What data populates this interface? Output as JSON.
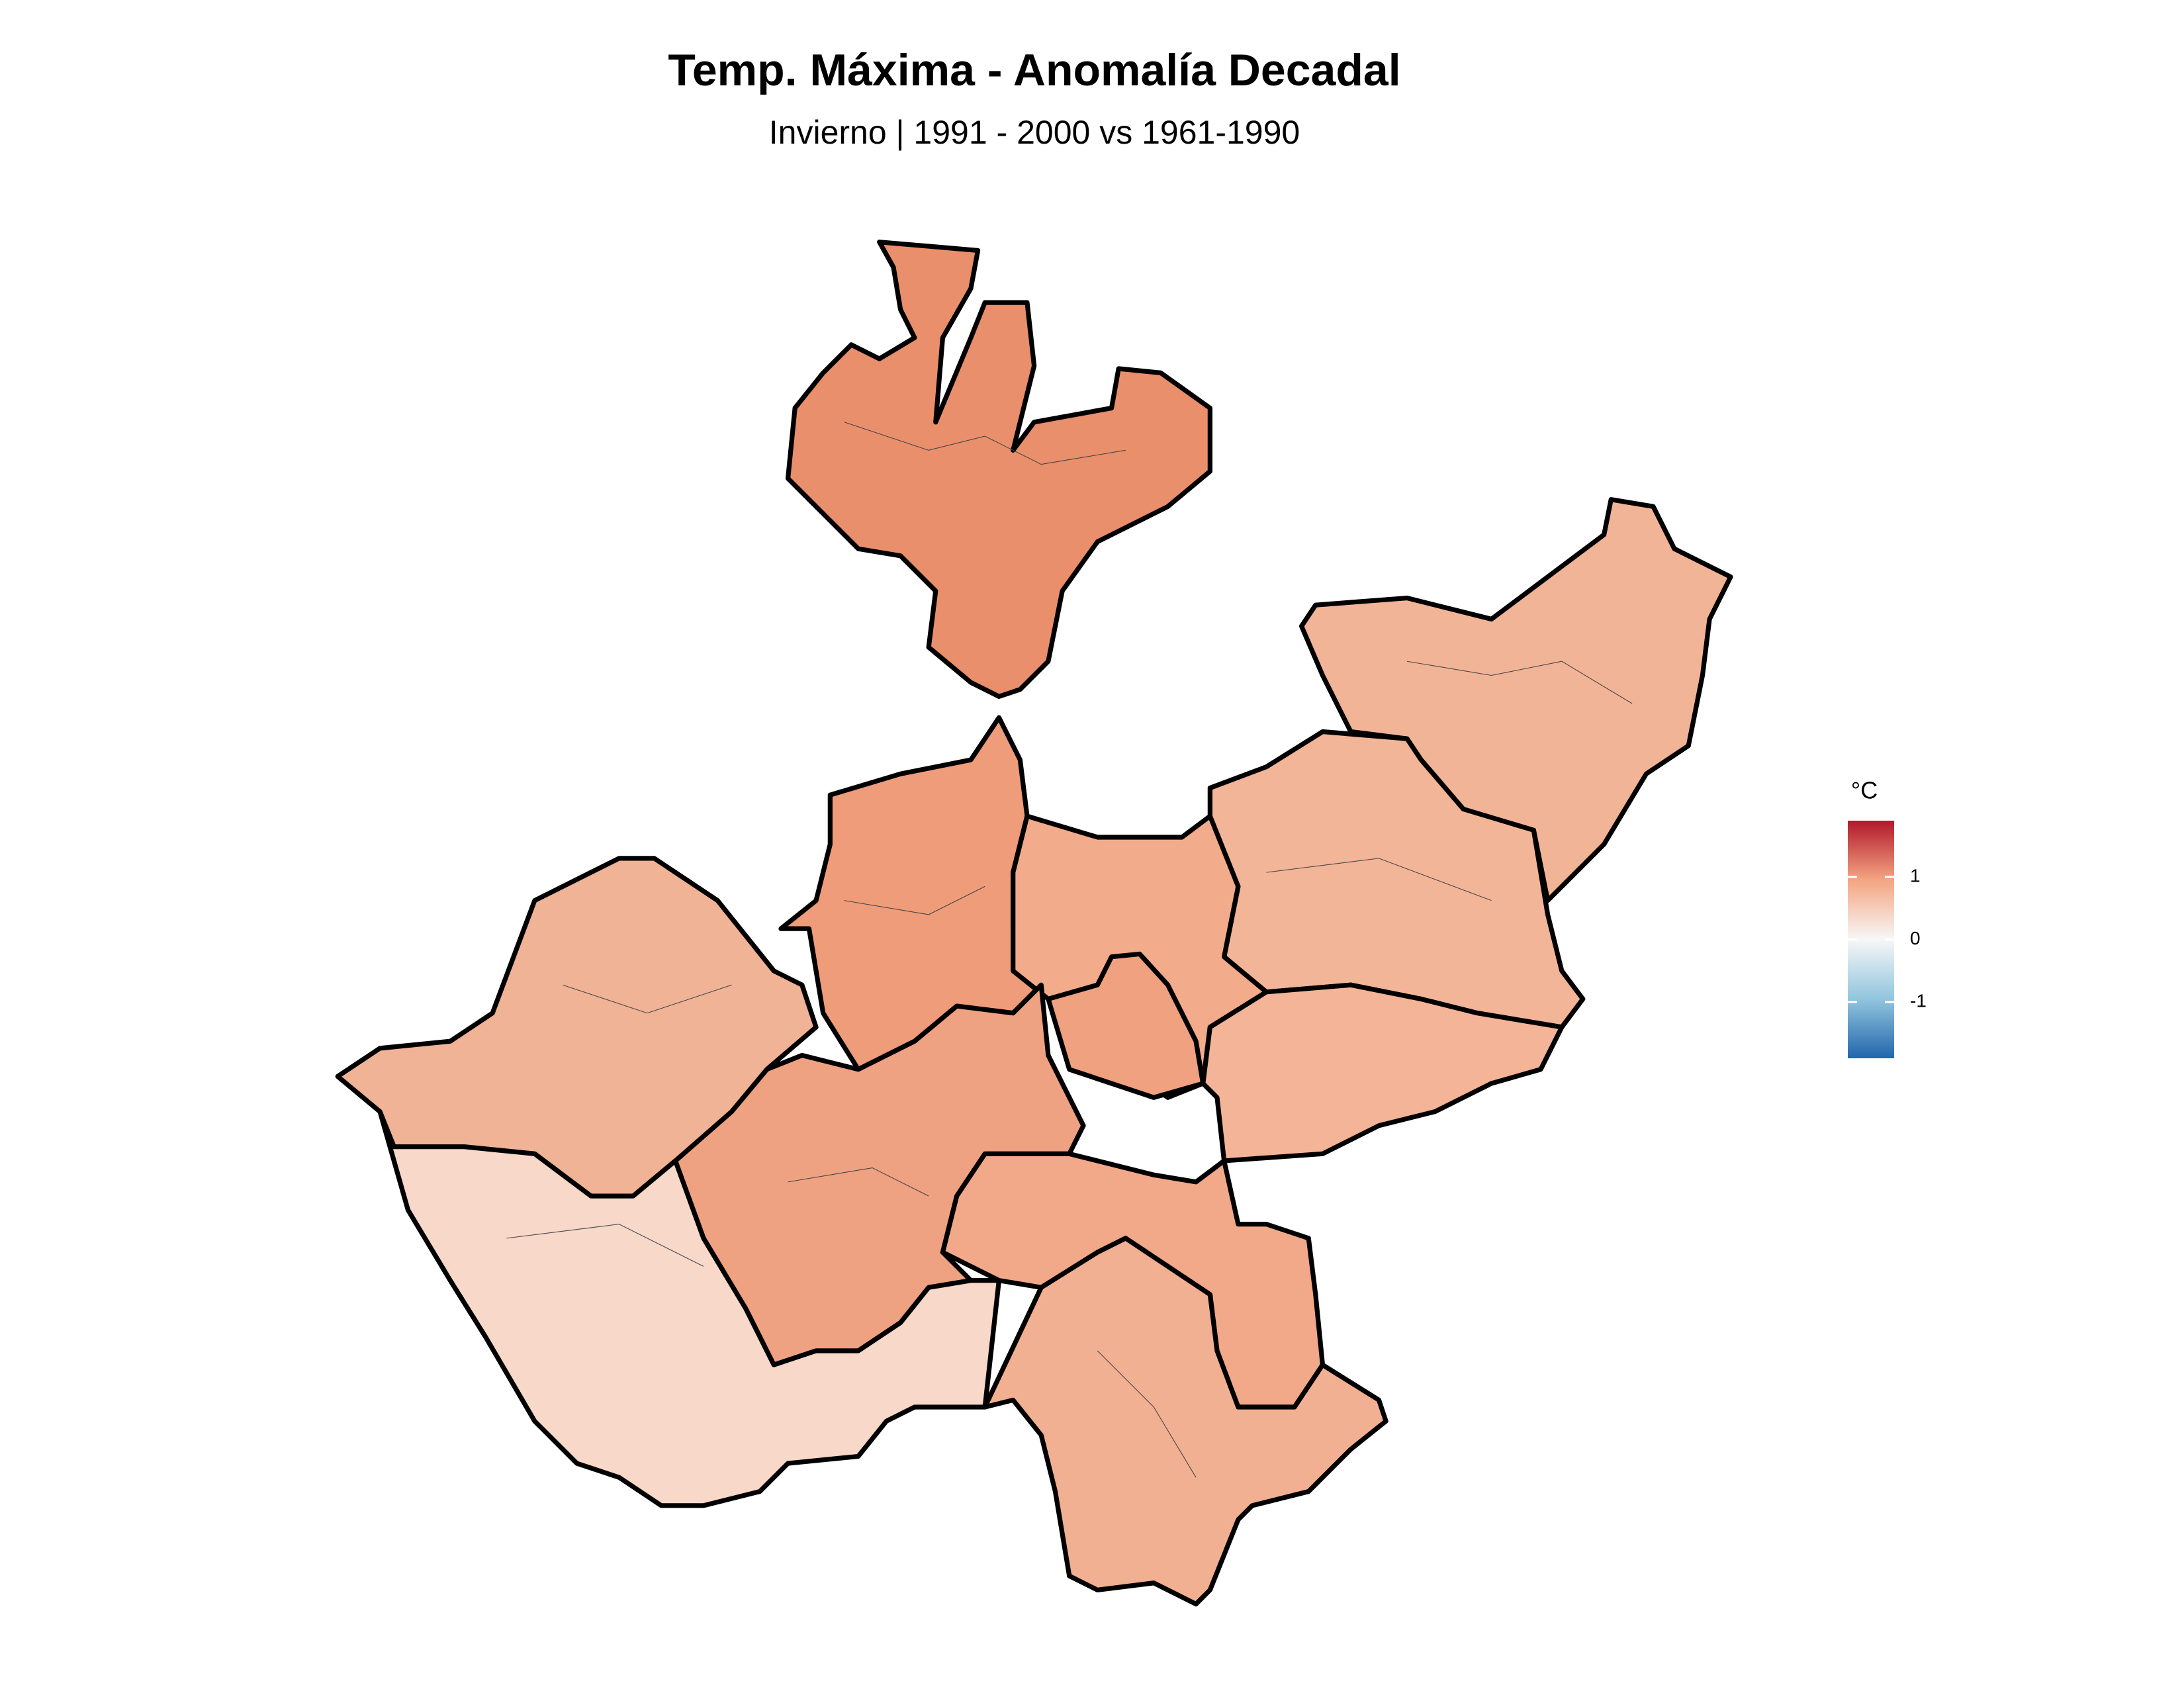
{
  "title": "Temp. Máxima - Anomalía Decadal",
  "subtitle": "Invierno | 1991 - 2000 vs 1961-1990",
  "legend": {
    "title": "°C",
    "range": [
      -1.9,
      1.9
    ],
    "ticks": [
      1,
      0,
      -1
    ],
    "colors": [
      "#2166ac",
      "#92c5de",
      "#f7f7f7",
      "#f4a582",
      "#b2182b"
    ]
  }
}
